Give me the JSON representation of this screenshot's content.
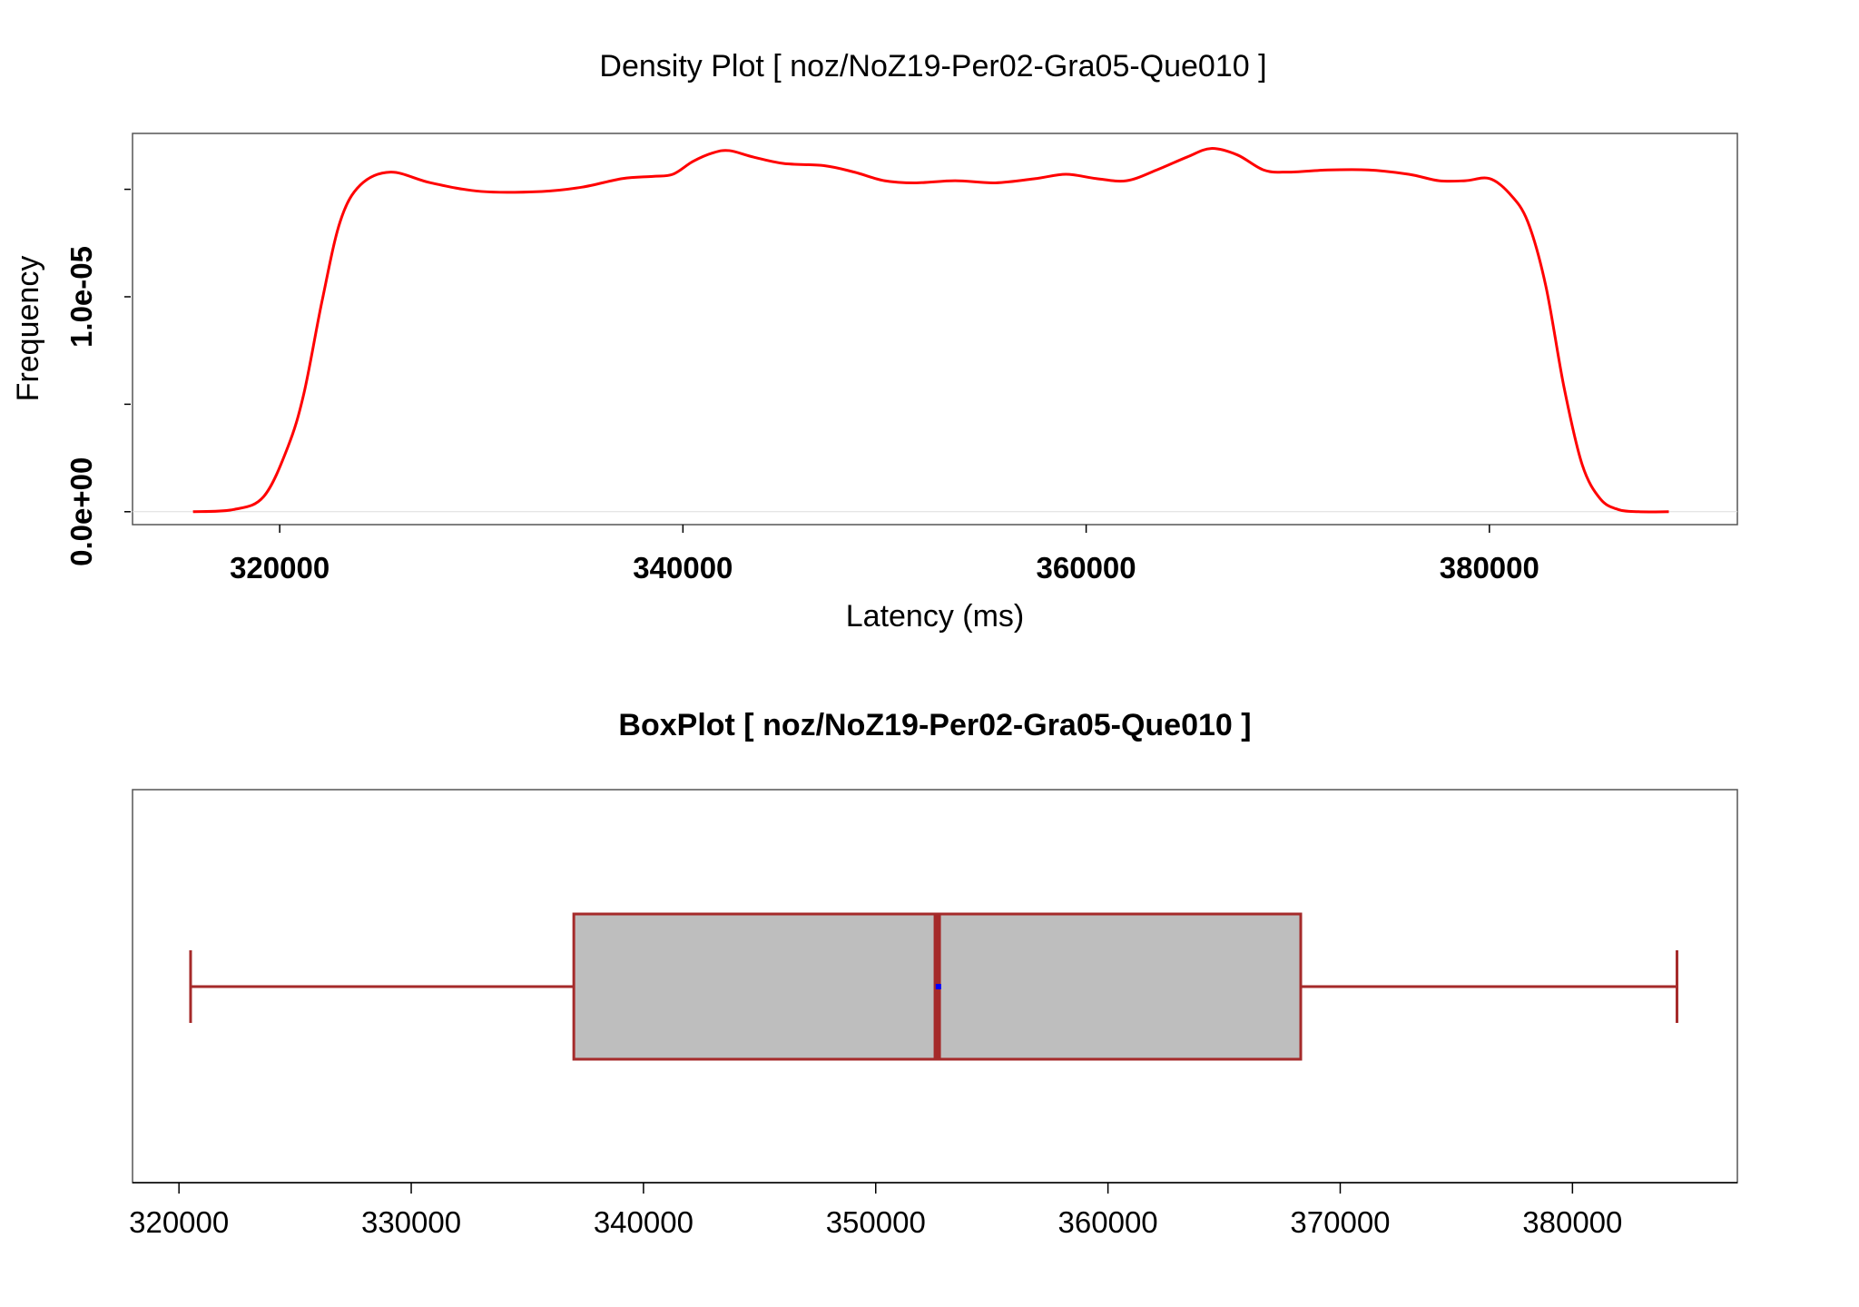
{
  "chart_data": [
    {
      "type": "line",
      "title": "Density Plot [ noz/NoZ19-Per02-Gra05-Que010 ]",
      "xlabel": "Latency (ms)",
      "ylabel": "Frequency",
      "x_ticks": [
        320000,
        340000,
        360000,
        380000
      ],
      "x_tick_labels": [
        "320000",
        "340000",
        "360000",
        "380000"
      ],
      "y_ticks": [
        0,
        5e-06,
        1e-05,
        1.5e-05
      ],
      "y_tick_labels": [
        "0.0e+00",
        "",
        "1.0e-05",
        ""
      ],
      "xlim": [
        312700,
        392300
      ],
      "ylim": [
        -6e-07,
        1.76e-05
      ],
      "line_color": "#ff0000",
      "series": [
        {
          "x": [
            315700,
            317700,
            319200,
            320400,
            321200,
            322100,
            323000,
            324000,
            325500,
            327500,
            330000,
            333000,
            335000,
            337000,
            338500,
            339500,
            340500,
            341500,
            342300,
            343500,
            345000,
            347000,
            348500,
            350000,
            351500,
            353500,
            355500,
            357500,
            359000,
            360500,
            362000,
            363500,
            365000,
            366200,
            367500,
            368800,
            370000,
            372000,
            374000,
            376000,
            377500,
            378800,
            380000,
            381000,
            381900,
            382800,
            383700,
            384600,
            385500,
            386400,
            387400,
            388900
          ],
          "y": [
            0,
            1e-07,
            7e-07,
            3e-06,
            5.5e-06,
            9.8e-06,
            1.35e-05,
            1.52e-05,
            1.58e-05,
            1.53e-05,
            1.49e-05,
            1.49e-05,
            1.51e-05,
            1.55e-05,
            1.56e-05,
            1.57e-05,
            1.63e-05,
            1.67e-05,
            1.68e-05,
            1.65e-05,
            1.62e-05,
            1.61e-05,
            1.58e-05,
            1.54e-05,
            1.53e-05,
            1.54e-05,
            1.53e-05,
            1.55e-05,
            1.57e-05,
            1.55e-05,
            1.54e-05,
            1.59e-05,
            1.65e-05,
            1.69e-05,
            1.66e-05,
            1.59e-05,
            1.58e-05,
            1.59e-05,
            1.59e-05,
            1.57e-05,
            1.54e-05,
            1.54e-05,
            1.55e-05,
            1.48e-05,
            1.35e-05,
            1.05e-05,
            5.8e-06,
            2.2e-06,
            6e-07,
            1e-07,
            0,
            0
          ]
        }
      ]
    },
    {
      "type": "boxplot",
      "title": "BoxPlot [ noz/NoZ19-Per02-Gra05-Que010 ]",
      "x_ticks": [
        320000,
        330000,
        340000,
        350000,
        360000,
        370000,
        380000
      ],
      "x_tick_labels": [
        "320000",
        "330000",
        "340000",
        "350000",
        "360000",
        "370000",
        "380000"
      ],
      "xlim": [
        318000,
        387100
      ],
      "box": {
        "min": 320500,
        "q1": 337000,
        "median": 352650,
        "mean": 352700,
        "q3": 368300,
        "max": 384500
      },
      "box_fill": "#bebebe",
      "box_border": "#a52a2a",
      "mean_color": "#0000ff"
    }
  ]
}
